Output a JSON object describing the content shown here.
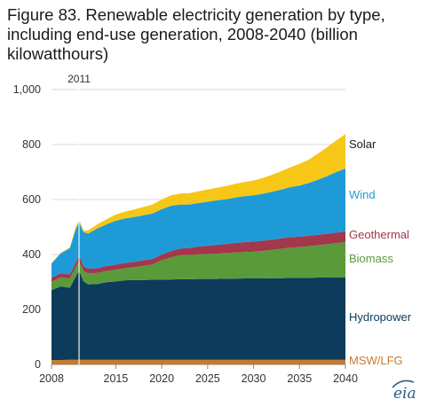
{
  "title_lines": [
    "Figure 83. Renewable electricity generation by type,",
    "including end-use generation, 2008-2040 (billion",
    "kilowatthours)"
  ],
  "logo_text": "eia",
  "chart_data": {
    "type": "area",
    "stacked": true,
    "title": "Figure 83. Renewable electricity generation by type, including end-use generation, 2008-2040 (billion kilowatthours)",
    "xlabel": "",
    "ylabel": "",
    "xlim": [
      2008,
      2040
    ],
    "ylim": [
      0,
      1000
    ],
    "x_ticks": [
      "2008",
      "2015",
      "2020",
      "2025",
      "2030",
      "2035",
      "2040"
    ],
    "x_tick_values": [
      2008,
      2015,
      2020,
      2025,
      2030,
      2035,
      2040
    ],
    "y_ticks": [
      "0",
      "200",
      "400",
      "600",
      "800",
      "1,000"
    ],
    "y_tick_values": [
      0,
      200,
      400,
      600,
      800,
      1000
    ],
    "grid": "horizontal",
    "legend": "inline-right",
    "annotation": {
      "text": "2011",
      "x": 2011
    },
    "x": [
      2008,
      2009,
      2010,
      2010.6,
      2011,
      2011.5,
      2012,
      2013,
      2014,
      2015,
      2016,
      2017,
      2018,
      2019,
      2020,
      2021,
      2022,
      2023,
      2024,
      2025,
      2026,
      2027,
      2028,
      2029,
      2030,
      2031,
      2032,
      2033,
      2034,
      2035,
      2036,
      2037,
      2038,
      2039,
      2040
    ],
    "series": [
      {
        "name": "MSW/LFG",
        "color": "#c87a2f",
        "values": [
          16,
          16,
          17,
          17,
          17,
          17,
          17,
          17,
          17,
          17,
          17,
          17,
          17,
          17,
          17,
          17,
          17,
          17,
          17,
          17,
          17,
          17,
          17,
          17,
          17,
          17,
          17,
          17,
          17,
          17,
          17,
          17,
          17,
          17,
          17
        ]
      },
      {
        "name": "Hydropower",
        "color": "#0d3b5c",
        "values": [
          254,
          268,
          262,
          300,
          324,
          285,
          274,
          276,
          282,
          285,
          289,
          290,
          290,
          291,
          292,
          292,
          293,
          293,
          294,
          294,
          294,
          295,
          295,
          296,
          296,
          296,
          297,
          297,
          298,
          298,
          298,
          299,
          299,
          300,
          300
        ]
      },
      {
        "name": "Biomass",
        "color": "#5a9a3a",
        "values": [
          30,
          33,
          33,
          35,
          36,
          38,
          40,
          40,
          41,
          43,
          44,
          47,
          52,
          56,
          70,
          80,
          87,
          88,
          90,
          91,
          92,
          93,
          95,
          96,
          97,
          100,
          103,
          107,
          110,
          112,
          115,
          118,
          121,
          125,
          128
        ]
      },
      {
        "name": "Geothermal",
        "color": "#a3374b",
        "values": [
          15,
          15,
          15,
          16,
          17,
          17,
          17,
          17,
          18,
          18,
          19,
          19,
          20,
          20,
          21,
          23,
          25,
          26,
          28,
          30,
          32,
          33,
          35,
          36,
          37,
          37,
          37,
          38,
          38,
          38,
          38,
          38,
          38,
          38,
          38
        ]
      },
      {
        "name": "Wind",
        "color": "#1e9bd7",
        "values": [
          52,
          72,
          96,
          120,
          124,
          124,
          128,
          145,
          152,
          160,
          162,
          163,
          164,
          165,
          165,
          165,
          160,
          158,
          158,
          160,
          162,
          163,
          165,
          167,
          168,
          171,
          174,
          177,
          182,
          186,
          192,
          200,
          210,
          220,
          230
        ]
      },
      {
        "name": "Solar",
        "color": "#f7c717",
        "values": [
          2,
          2,
          3,
          8,
          8,
          5,
          12,
          15,
          18,
          22,
          25,
          28,
          30,
          33,
          35,
          38,
          40,
          41,
          43,
          44,
          46,
          48,
          50,
          52,
          54,
          57,
          62,
          67,
          72,
          79,
          85,
          95,
          105,
          115,
          125
        ]
      }
    ]
  }
}
